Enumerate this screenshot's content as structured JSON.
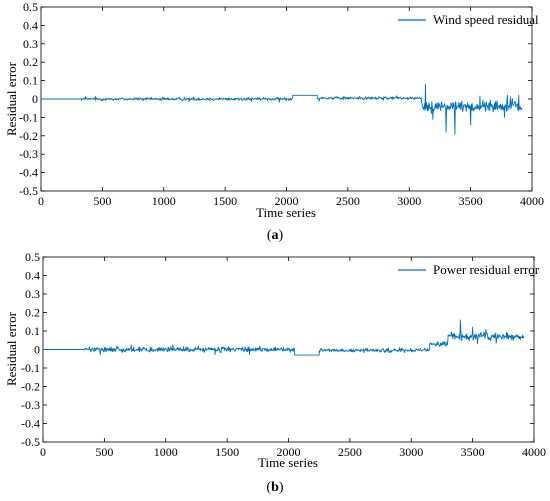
{
  "chart_data": [
    {
      "type": "line",
      "panel": "(a)",
      "caption_letter": "a",
      "xlabel": "Time series",
      "ylabel": "Residual error",
      "xlim": [
        0,
        4000
      ],
      "ylim": [
        -0.5,
        0.5
      ],
      "xticks": [
        "0",
        "500",
        "1000",
        "1500",
        "2000",
        "2500",
        "3000",
        "3500",
        "4000"
      ],
      "yticks": [
        "0.5",
        "0.4",
        "0.3",
        "0.2",
        "0.1",
        "0",
        "-0.1",
        "-0.2",
        "-0.3",
        "-0.4",
        "-0.5"
      ],
      "legend_position": "top-right",
      "series": [
        {
          "name": "Wind speed residual",
          "color": "#0072BD",
          "segments": [
            {
              "x0": 0,
              "x1": 330,
              "level": 0.0,
              "noise": 0.0,
              "spikes": []
            },
            {
              "x0": 330,
              "x1": 2050,
              "level": 0.0,
              "noise": 0.012,
              "spikes": [
                [
                  340,
                  -0.07
                ],
                [
                  350,
                  0.02
                ],
                [
                  1190,
                  -0.03
                ],
                [
                  1500,
                  0.03
                ],
                [
                  1960,
                  0.03
                ]
              ]
            },
            {
              "x0": 2050,
              "x1": 2250,
              "level": 0.02,
              "noise": 0.0,
              "spikes": []
            },
            {
              "x0": 2250,
              "x1": 3100,
              "level": 0.005,
              "noise": 0.012,
              "spikes": [
                [
                  2260,
                  -0.03
                ],
                [
                  2500,
                  0.03
                ],
                [
                  2630,
                  0.02
                ]
              ]
            },
            {
              "x0": 3100,
              "x1": 3920,
              "level": -0.04,
              "noise": 0.045,
              "spikes": [
                [
                  3130,
                  0.08
                ],
                [
                  3300,
                  -0.18
                ],
                [
                  3370,
                  -0.19
                ],
                [
                  3500,
                  -0.14
                ],
                [
                  3800,
                  0.02
                ],
                [
                  3890,
                  0.02
                ]
              ]
            }
          ]
        }
      ]
    },
    {
      "type": "line",
      "panel": "(b)",
      "caption_letter": "b",
      "xlabel": "Time series",
      "ylabel": "Residual error",
      "xlim": [
        0,
        4000
      ],
      "ylim": [
        -0.5,
        0.5
      ],
      "xticks": [
        "0",
        "500",
        "1000",
        "1500",
        "2000",
        "2500",
        "3000",
        "3500",
        "4000"
      ],
      "yticks": [
        "0.5",
        "0.4",
        "0.3",
        "0.2",
        "0.1",
        "0",
        "-0.1",
        "-0.2",
        "-0.3",
        "-0.4",
        "-0.5"
      ],
      "legend_position": "top-right",
      "series": [
        {
          "name": "Power residual error",
          "color": "#0072BD",
          "segments": [
            {
              "x0": 0,
              "x1": 330,
              "level": 0.0,
              "noise": 0.0,
              "spikes": []
            },
            {
              "x0": 330,
              "x1": 2050,
              "level": 0.0,
              "noise": 0.02,
              "spikes": [
                [
                  340,
                  0.07
                ],
                [
                  860,
                  0.08
                ],
                [
                  1120,
                  -0.19
                ],
                [
                  1540,
                  0.06
                ],
                [
                  1780,
                  0.05
                ]
              ]
            },
            {
              "x0": 2050,
              "x1": 2250,
              "level": -0.03,
              "noise": 0.0,
              "spikes": []
            },
            {
              "x0": 2250,
              "x1": 3150,
              "level": -0.005,
              "noise": 0.015,
              "spikes": [
                [
                  2270,
                  0.04
                ],
                [
                  2620,
                  0.04
                ],
                [
                  2920,
                  -0.12
                ]
              ]
            },
            {
              "x0": 3150,
              "x1": 3300,
              "level": 0.03,
              "noise": 0.02,
              "spikes": [
                [
                  3280,
                  0.14
                ]
              ]
            },
            {
              "x0": 3300,
              "x1": 3920,
              "level": 0.07,
              "noise": 0.03,
              "spikes": [
                [
                  3400,
                  0.16
                ],
                [
                  3500,
                  0.12
                ]
              ]
            }
          ]
        }
      ]
    }
  ]
}
